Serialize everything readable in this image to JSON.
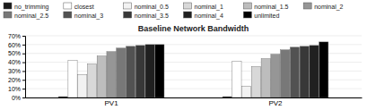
{
  "chart_data": {
    "type": "bar",
    "title": "Baseline Network Bandwidth",
    "categories": [
      "PV1",
      "PV2"
    ],
    "series": [
      {
        "name": "no_trimming",
        "color": "#1a1a1a",
        "values": [
          0.01,
          0.01
        ]
      },
      {
        "name": "closest",
        "color": "#ffffff",
        "values": [
          0.42,
          0.41
        ]
      },
      {
        "name": "nominal_0.5",
        "color": "#f2f2f2",
        "values": [
          0.26,
          0.13
        ]
      },
      {
        "name": "nominal_1",
        "color": "#d8d8d8",
        "values": [
          0.38,
          0.35
        ]
      },
      {
        "name": "nominal_1.5",
        "color": "#bdbdbd",
        "values": [
          0.47,
          0.44
        ]
      },
      {
        "name": "nominal_2",
        "color": "#969696",
        "values": [
          0.52,
          0.49
        ]
      },
      {
        "name": "nominal_2.5",
        "color": "#787878",
        "values": [
          0.56,
          0.54
        ]
      },
      {
        "name": "nominal_3",
        "color": "#525252",
        "values": [
          0.58,
          0.57
        ]
      },
      {
        "name": "nominal_3.5",
        "color": "#383838",
        "values": [
          0.59,
          0.58
        ]
      },
      {
        "name": "nominal_4",
        "color": "#202020",
        "values": [
          0.6,
          0.59
        ]
      },
      {
        "name": "unlimited",
        "color": "#000000",
        "values": [
          0.6,
          0.63
        ]
      }
    ],
    "ylim": [
      0,
      0.7
    ],
    "yticks": [
      {
        "value": 0.0,
        "label": "0%"
      },
      {
        "value": 0.1,
        "label": "10%"
      },
      {
        "value": 0.2,
        "label": "20%"
      },
      {
        "value": 0.3,
        "label": "30%"
      },
      {
        "value": 0.4,
        "label": "40%"
      },
      {
        "value": 0.5,
        "label": "50%"
      },
      {
        "value": 0.6,
        "label": "60%"
      },
      {
        "value": 0.7,
        "label": "70%"
      }
    ],
    "grid": true,
    "legend": "top"
  }
}
